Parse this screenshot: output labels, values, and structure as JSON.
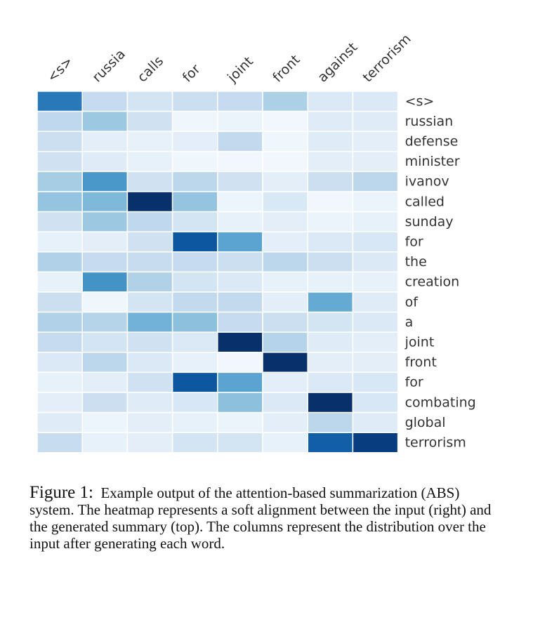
{
  "chart_data": {
    "type": "heatmap",
    "columns": [
      "<s>",
      "russia",
      "calls",
      "for",
      "joint",
      "front",
      "against",
      "terrorism"
    ],
    "rows": [
      "<s>",
      "russian",
      "defense",
      "minister",
      "ivanov",
      "called",
      "sunday",
      "for",
      "the",
      "creation",
      "of",
      "a",
      "joint",
      "front",
      "for",
      "combating",
      "global",
      "terrorism"
    ],
    "values": [
      [
        0.72,
        0.25,
        0.18,
        0.22,
        0.25,
        0.33,
        0.14,
        0.14
      ],
      [
        0.27,
        0.38,
        0.2,
        0.04,
        0.06,
        0.03,
        0.12,
        0.12
      ],
      [
        0.22,
        0.1,
        0.08,
        0.1,
        0.26,
        0.04,
        0.12,
        0.1
      ],
      [
        0.2,
        0.12,
        0.08,
        0.04,
        0.03,
        0.03,
        0.1,
        0.1
      ],
      [
        0.35,
        0.6,
        0.2,
        0.28,
        0.2,
        0.1,
        0.22,
        0.28
      ],
      [
        0.4,
        0.45,
        1.0,
        0.4,
        0.05,
        0.15,
        0.03,
        0.06
      ],
      [
        0.2,
        0.38,
        0.27,
        0.18,
        0.08,
        0.1,
        0.06,
        0.08
      ],
      [
        0.08,
        0.1,
        0.2,
        0.85,
        0.55,
        0.1,
        0.14,
        0.16
      ],
      [
        0.32,
        0.25,
        0.24,
        0.25,
        0.22,
        0.28,
        0.22,
        0.14
      ],
      [
        0.08,
        0.62,
        0.32,
        0.18,
        0.14,
        0.08,
        0.08,
        0.08
      ],
      [
        0.22,
        0.04,
        0.18,
        0.26,
        0.26,
        0.1,
        0.52,
        0.12
      ],
      [
        0.32,
        0.3,
        0.48,
        0.42,
        0.25,
        0.22,
        0.18,
        0.14
      ],
      [
        0.25,
        0.18,
        0.2,
        0.14,
        1.0,
        0.3,
        0.12,
        0.1
      ],
      [
        0.14,
        0.28,
        0.14,
        0.08,
        0.03,
        1.0,
        0.1,
        0.1
      ],
      [
        0.08,
        0.1,
        0.2,
        0.85,
        0.55,
        0.1,
        0.14,
        0.16
      ],
      [
        0.1,
        0.22,
        0.12,
        0.16,
        0.42,
        0.14,
        1.0,
        0.16
      ],
      [
        0.12,
        0.05,
        0.1,
        0.08,
        0.06,
        0.1,
        0.28,
        0.12
      ],
      [
        0.24,
        0.08,
        0.1,
        0.18,
        0.18,
        0.08,
        0.82,
        0.95
      ]
    ],
    "colormap": "Blues",
    "low_color": "#f7fbff",
    "high_color": "#08306b",
    "column_labels_position": "top, rotated",
    "row_labels_position": "right",
    "legend": "none",
    "grid": false
  },
  "caption": {
    "label": "Figure 1:",
    "text": "Example output of the attention-based summarization (ABS) system. The heatmap represents a soft alignment between the input (right) and the generated summary (top). The columns represent the distribution over the input after generating each word."
  }
}
